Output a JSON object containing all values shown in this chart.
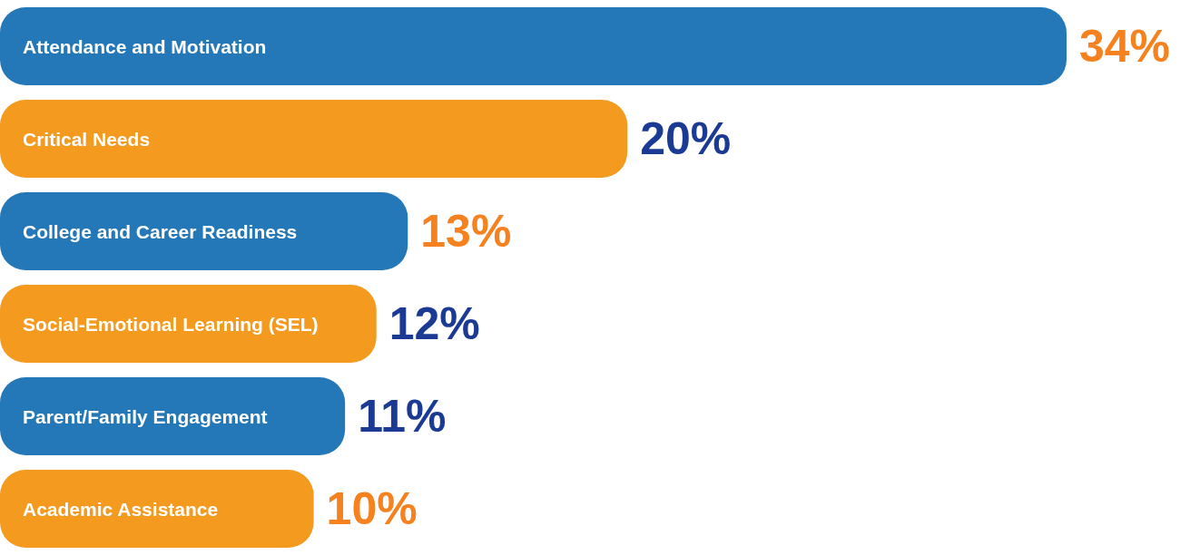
{
  "chart_data": {
    "type": "bar",
    "orientation": "horizontal",
    "categories": [
      "Attendance and Motivation",
      "Critical Needs",
      "College and Career Readiness",
      "Social-Emotional Learning (SEL)",
      "Parent/Family Engagement",
      "Academic Assistance"
    ],
    "values": [
      34,
      20,
      13,
      12,
      11,
      10
    ],
    "value_labels": [
      "34%",
      "20%",
      "13%",
      "12%",
      "11%",
      "10%"
    ],
    "colors": [
      "#2478b8",
      "#f39a1f",
      "#2478b8",
      "#f39a1f",
      "#2478b8",
      "#f39a1f"
    ]
  }
}
